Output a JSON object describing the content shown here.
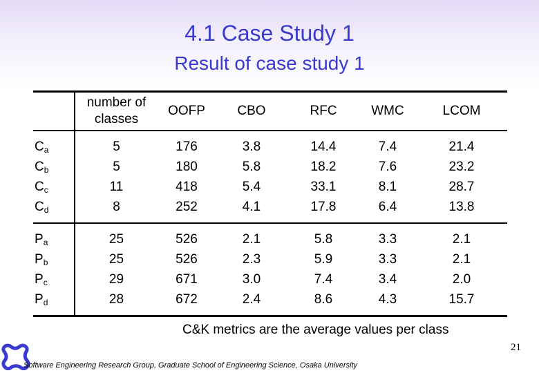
{
  "slide": {
    "title": "4.1 Case Study 1",
    "subtitle": "Result of case study 1",
    "note": "C&K metrics are the average values per class",
    "page_number": "21",
    "footer": "Software Engineering Research Group, Graduate School of Engineering Science, Osaka University",
    "accent_color": "#3a3acf",
    "logo_icon": "university-logo-icon"
  },
  "table": {
    "headers": [
      "",
      "number of classes",
      "OOFP",
      "CBO",
      "RFC",
      "WMC",
      "LCOM"
    ],
    "groups": [
      {
        "rows": [
          {
            "base": "C",
            "sub": "a",
            "values": [
              "5",
              "176",
              "3.8",
              "14.4",
              "7.4",
              "21.4"
            ]
          },
          {
            "base": "C",
            "sub": "b",
            "values": [
              "5",
              "180",
              "5.8",
              "18.2",
              "7.6",
              "23.2"
            ]
          },
          {
            "base": "C",
            "sub": "c",
            "values": [
              "11",
              "418",
              "5.4",
              "33.1",
              "8.1",
              "28.7"
            ]
          },
          {
            "base": "C",
            "sub": "d",
            "values": [
              "8",
              "252",
              "4.1",
              "17.8",
              "6.4",
              "13.8"
            ]
          }
        ]
      },
      {
        "rows": [
          {
            "base": "P",
            "sub": "a",
            "values": [
              "25",
              "526",
              "2.1",
              "5.8",
              "3.3",
              "2.1"
            ]
          },
          {
            "base": "P",
            "sub": "b",
            "values": [
              "25",
              "526",
              "2.3",
              "5.9",
              "3.3",
              "2.1"
            ]
          },
          {
            "base": "P",
            "sub": "c",
            "values": [
              "29",
              "671",
              "3.0",
              "7.4",
              "3.4",
              "2.0"
            ]
          },
          {
            "base": "P",
            "sub": "d",
            "values": [
              "28",
              "672",
              "2.4",
              "8.6",
              "4.3",
              "15.7"
            ]
          }
        ]
      }
    ]
  }
}
